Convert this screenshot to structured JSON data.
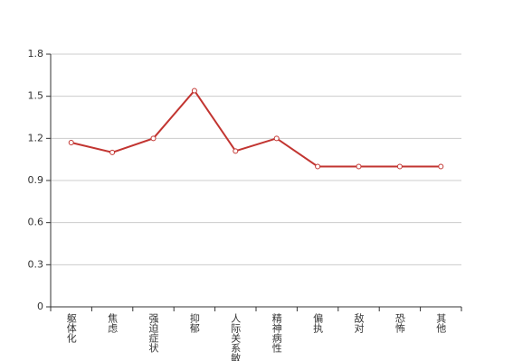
{
  "chart_data": {
    "type": "line",
    "categories": [
      "躯体化",
      "焦虑",
      "强迫症状",
      "抑郁",
      "人际关系敏感",
      "精神病性",
      "偏执",
      "敌对",
      "恐怖",
      "其他"
    ],
    "series": [
      {
        "values": [
          1.17,
          1.1,
          1.2,
          1.54,
          1.11,
          1.2,
          1.0,
          1.0,
          1.0,
          1.0
        ],
        "color": "#c23531"
      }
    ],
    "ylim": [
      0,
      1.8
    ],
    "yticks": [
      0,
      0.3,
      0.6,
      0.9,
      1.2,
      1.5,
      1.8
    ],
    "grid": true
  }
}
